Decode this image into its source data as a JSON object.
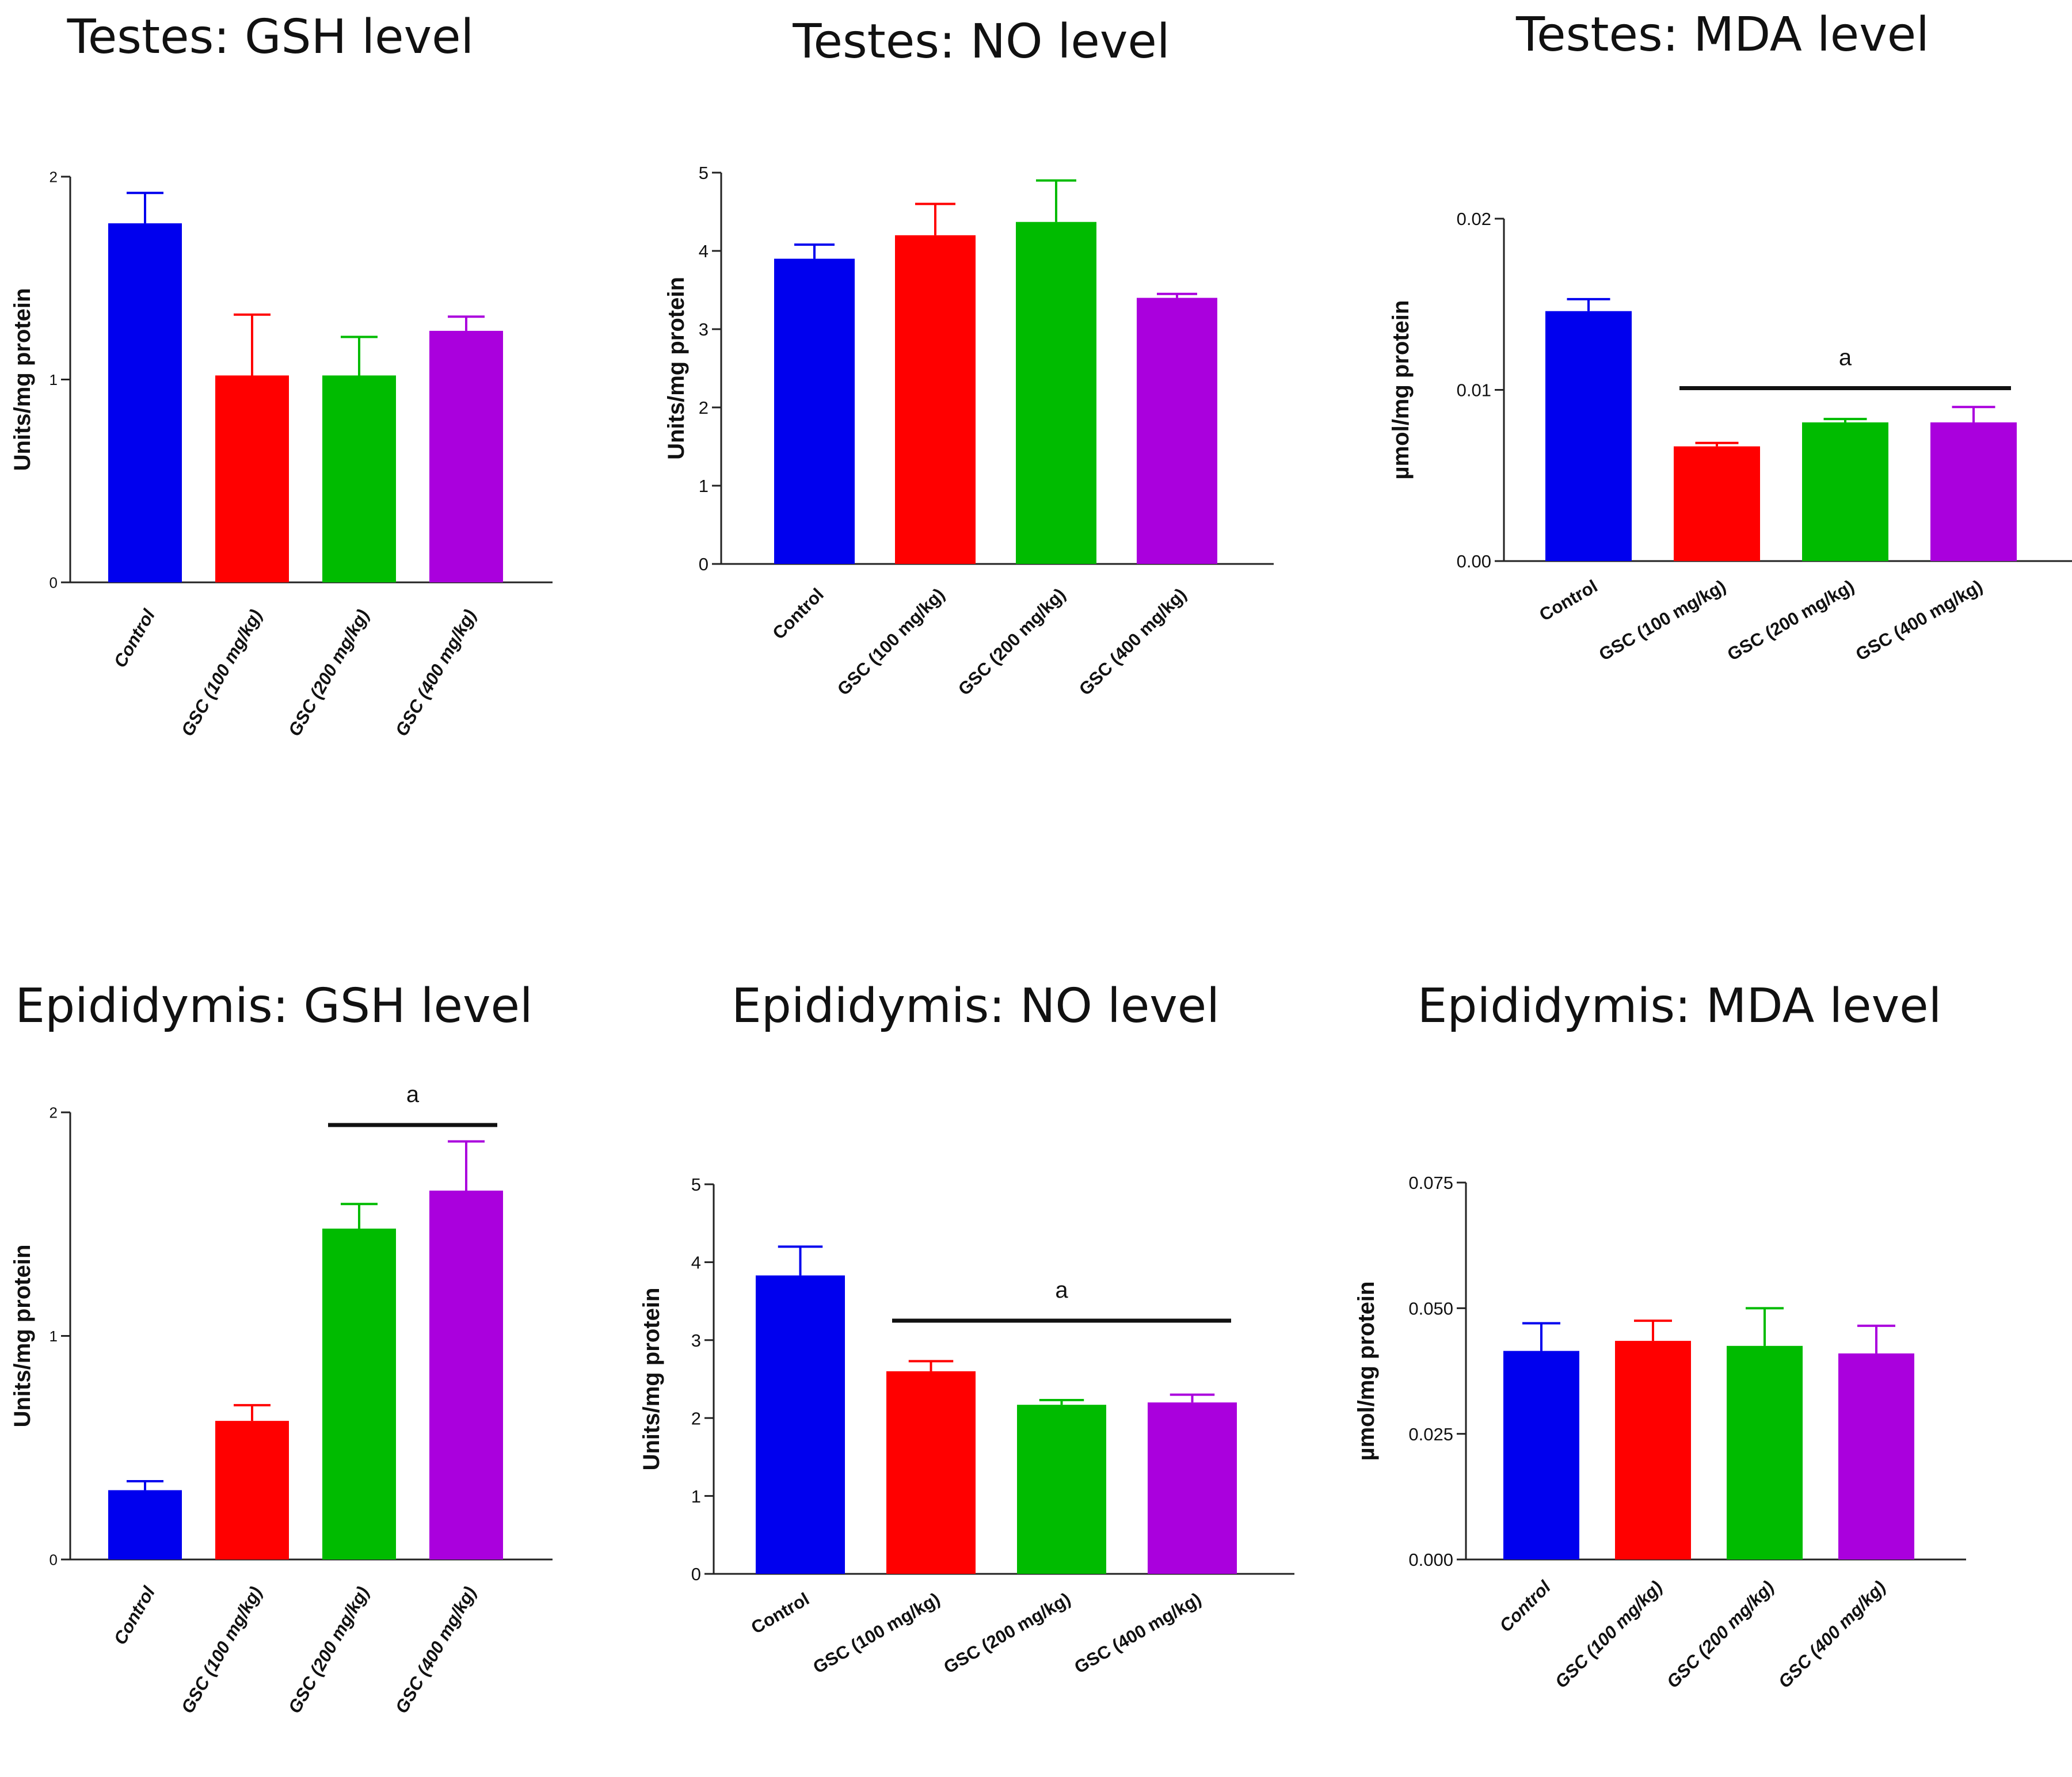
{
  "colors": {
    "control": "#0000ee",
    "gsc100": "#ff0000",
    "gsc200": "#00bb00",
    "gsc400": "#aa00dd"
  },
  "chart_data": [
    {
      "type": "bar",
      "title": "Testes: GSH level",
      "ylabel": "Units/mg protein",
      "xlabel": "",
      "categories": [
        "Control",
        "GSC (100 mg/kg)",
        "GSC (200 mg/kg)",
        "GSC (400 mg/kg)"
      ],
      "values": [
        1.77,
        1.02,
        1.02,
        1.24
      ],
      "errors": [
        0.15,
        0.3,
        0.19,
        0.07
      ],
      "ylim": [
        0,
        2
      ],
      "yticks": [
        "0",
        "1",
        "2"
      ],
      "significance": []
    },
    {
      "type": "bar",
      "title": "Testes: NO level",
      "ylabel": "Units/mg protein",
      "xlabel": "",
      "categories": [
        "Control",
        "GSC (100 mg/kg)",
        "GSC (200 mg/kg)",
        "GSC (400 mg/kg)"
      ],
      "values": [
        3.9,
        4.2,
        4.37,
        3.4
      ],
      "errors": [
        0.18,
        0.4,
        0.53,
        0.05
      ],
      "ylim": [
        0,
        5
      ],
      "yticks": [
        "0",
        "1",
        "2",
        "3",
        "4",
        "5"
      ],
      "significance": []
    },
    {
      "type": "bar",
      "title": "Testes: MDA level",
      "ylabel": "µmol/mg protein",
      "xlabel": "",
      "categories": [
        "Control",
        "GSC (100 mg/kg)",
        "GSC (200 mg/kg)",
        "GSC (400 mg/kg)"
      ],
      "values": [
        0.0146,
        0.0067,
        0.0081,
        0.0081
      ],
      "errors": [
        0.0007,
        0.0002,
        0.0002,
        0.0009
      ],
      "ylim": [
        0,
        0.02
      ],
      "yticks": [
        "0.00",
        "0.01",
        "0.02"
      ],
      "significance": [
        {
          "label": "a",
          "from": 1,
          "to": 3
        }
      ]
    },
    {
      "type": "bar",
      "title": "Epididymis: GSH level",
      "ylabel": "Units/mg protein",
      "xlabel": "",
      "categories": [
        "Control",
        "GSC (100 mg/kg)",
        "GSC (200 mg/kg)",
        "GSC (400 mg/kg)"
      ],
      "values": [
        0.31,
        0.62,
        1.48,
        1.65
      ],
      "errors": [
        0.04,
        0.07,
        0.11,
        0.22
      ],
      "ylim": [
        0,
        2
      ],
      "yticks": [
        "0",
        "1",
        "2"
      ],
      "significance": [
        {
          "label": "a",
          "from": 2,
          "to": 3
        }
      ]
    },
    {
      "type": "bar",
      "title": "Epididymis: NO level",
      "ylabel": "Units/mg protein",
      "xlabel": "",
      "categories": [
        "Control",
        "GSC (100 mg/kg)",
        "GSC (200 mg/kg)",
        "GSC (400 mg/kg)"
      ],
      "values": [
        3.83,
        2.6,
        2.17,
        2.2
      ],
      "errors": [
        0.37,
        0.13,
        0.06,
        0.1
      ],
      "ylim": [
        0,
        5
      ],
      "yticks": [
        "0",
        "1",
        "2",
        "3",
        "4",
        "5"
      ],
      "significance": [
        {
          "label": "a",
          "from": 1,
          "to": 3
        }
      ]
    },
    {
      "type": "bar",
      "title": "Epididymis: MDA level",
      "ylabel": "µmol/mg protein",
      "xlabel": "",
      "categories": [
        "Control",
        "GSC (100 mg/kg)",
        "GSC (200 mg/kg)",
        "GSC (400 mg/kg)"
      ],
      "values": [
        0.0415,
        0.0435,
        0.0425,
        0.041
      ],
      "errors": [
        0.0055,
        0.004,
        0.0075,
        0.0055
      ],
      "ylim": [
        0,
        0.075
      ],
      "yticks": [
        "0.000",
        "0.025",
        "0.050",
        "0.075"
      ],
      "significance": []
    }
  ]
}
